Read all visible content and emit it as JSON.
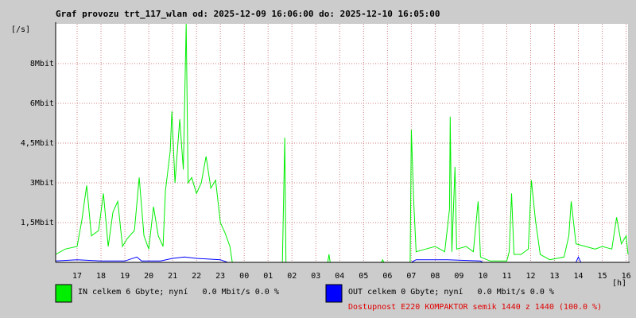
{
  "chart_data": {
    "type": "line",
    "title": "Graf provozu trt_117_wlan od: 2025-12-09 16:06:00 do: 2025-12-10 16:05:00",
    "y_label": "[/s]",
    "x_label": "[h]",
    "xlim": [
      16.1,
      40.08
    ],
    "xticks": [
      {
        "value": 17,
        "label": "17"
      },
      {
        "value": 18,
        "label": "18"
      },
      {
        "value": 19,
        "label": "19"
      },
      {
        "value": 20,
        "label": "20"
      },
      {
        "value": 21,
        "label": "21"
      },
      {
        "value": 22,
        "label": "22"
      },
      {
        "value": 23,
        "label": "23"
      },
      {
        "value": 24,
        "label": "00"
      },
      {
        "value": 25,
        "label": "01"
      },
      {
        "value": 26,
        "label": "02"
      },
      {
        "value": 27,
        "label": "03"
      },
      {
        "value": 28,
        "label": "04"
      },
      {
        "value": 29,
        "label": "05"
      },
      {
        "value": 30,
        "label": "06"
      },
      {
        "value": 31,
        "label": "07"
      },
      {
        "value": 32,
        "label": "08"
      },
      {
        "value": 33,
        "label": "09"
      },
      {
        "value": 34,
        "label": "10"
      },
      {
        "value": 35,
        "label": "11"
      },
      {
        "value": 36,
        "label": "12"
      },
      {
        "value": 37,
        "label": "13"
      },
      {
        "value": 38,
        "label": "14"
      },
      {
        "value": 39,
        "label": "15"
      },
      {
        "value": 40,
        "label": "16"
      }
    ],
    "ylim": [
      0,
      9
    ],
    "yticks": [
      {
        "value": 1.5,
        "label": "1,5Mbit"
      },
      {
        "value": 3,
        "label": "3Mbit"
      },
      {
        "value": 4.5,
        "label": "4,5Mbit"
      },
      {
        "value": 6,
        "label": "6Mbit"
      },
      {
        "value": 7.5,
        "label": "8Mbit"
      }
    ],
    "grid": true,
    "series": [
      {
        "name": "IN celkem 6 Gbyte; nyní   0.0 Mbit/s 0.0 %",
        "color": "#00ee00",
        "x": [
          16.1,
          16.5,
          17.0,
          17.2,
          17.4,
          17.6,
          17.9,
          18.1,
          18.3,
          18.5,
          18.7,
          18.9,
          19.1,
          19.4,
          19.6,
          19.8,
          20.0,
          20.2,
          20.4,
          20.6,
          20.7,
          20.9,
          20.97,
          21.1,
          21.3,
          21.45,
          21.57,
          21.65,
          21.8,
          22.0,
          22.2,
          22.4,
          22.6,
          22.8,
          23.0,
          23.2,
          23.4,
          23.5,
          25.6,
          25.7,
          25.75,
          27.5,
          27.55,
          27.6,
          29.75,
          29.8,
          29.85,
          30.95,
          31.0,
          31.1,
          31.2,
          31.6,
          32.0,
          32.4,
          32.6,
          32.63,
          32.7,
          32.83,
          32.9,
          33.3,
          33.6,
          33.8,
          33.9,
          34.3,
          35.0,
          35.1,
          35.2,
          35.3,
          35.6,
          35.9,
          36.03,
          36.2,
          36.4,
          36.8,
          37.4,
          37.6,
          37.7,
          37.9,
          38.3,
          38.7,
          39.0,
          39.4,
          39.6,
          39.8,
          40.0,
          40.08
        ],
        "values": [
          0.3,
          0.5,
          0.6,
          1.6,
          2.9,
          1.0,
          1.2,
          2.6,
          0.6,
          1.9,
          2.3,
          0.6,
          0.9,
          1.2,
          3.2,
          1.0,
          0.5,
          2.1,
          1.0,
          0.6,
          2.7,
          4.2,
          5.7,
          3.0,
          5.4,
          3.5,
          9.0,
          3.0,
          3.2,
          2.6,
          3.0,
          4.0,
          2.8,
          3.1,
          1.5,
          1.1,
          0.6,
          0,
          0,
          4.7,
          0,
          0,
          0.3,
          0,
          0,
          0.1,
          0,
          0,
          5.0,
          2.3,
          0.4,
          0.5,
          0.6,
          0.4,
          2.0,
          5.5,
          0.4,
          3.6,
          0.5,
          0.6,
          0.4,
          2.3,
          0.2,
          0.05,
          0.05,
          0.4,
          2.6,
          0.3,
          0.3,
          0.5,
          3.1,
          1.6,
          0.3,
          0.1,
          0.2,
          1.0,
          2.3,
          0.7,
          0.6,
          0.5,
          0.6,
          0.5,
          1.7,
          0.7,
          1.0,
          0.3
        ]
      },
      {
        "name": "OUT celkem 0 Gbyte; nyní   0.0 Mbit/s 0.0 %",
        "color": "#0000ff",
        "x": [
          16.1,
          17.0,
          18.0,
          19.0,
          19.5,
          19.7,
          20.5,
          21.0,
          21.5,
          22.0,
          23.0,
          23.3,
          31.0,
          31.2,
          32.5,
          33.9,
          34.0,
          37.9,
          38.0,
          38.1,
          40.08
        ],
        "values": [
          0.05,
          0.1,
          0.05,
          0.05,
          0.2,
          0.05,
          0.05,
          0.15,
          0.2,
          0.15,
          0.1,
          0,
          0,
          0.1,
          0.1,
          0.05,
          0,
          0,
          0.2,
          0,
          0
        ]
      }
    ],
    "availability": "Dostupnost E220 KOMPAKTOR semik 1440 z 1440 (100.0 %)"
  }
}
